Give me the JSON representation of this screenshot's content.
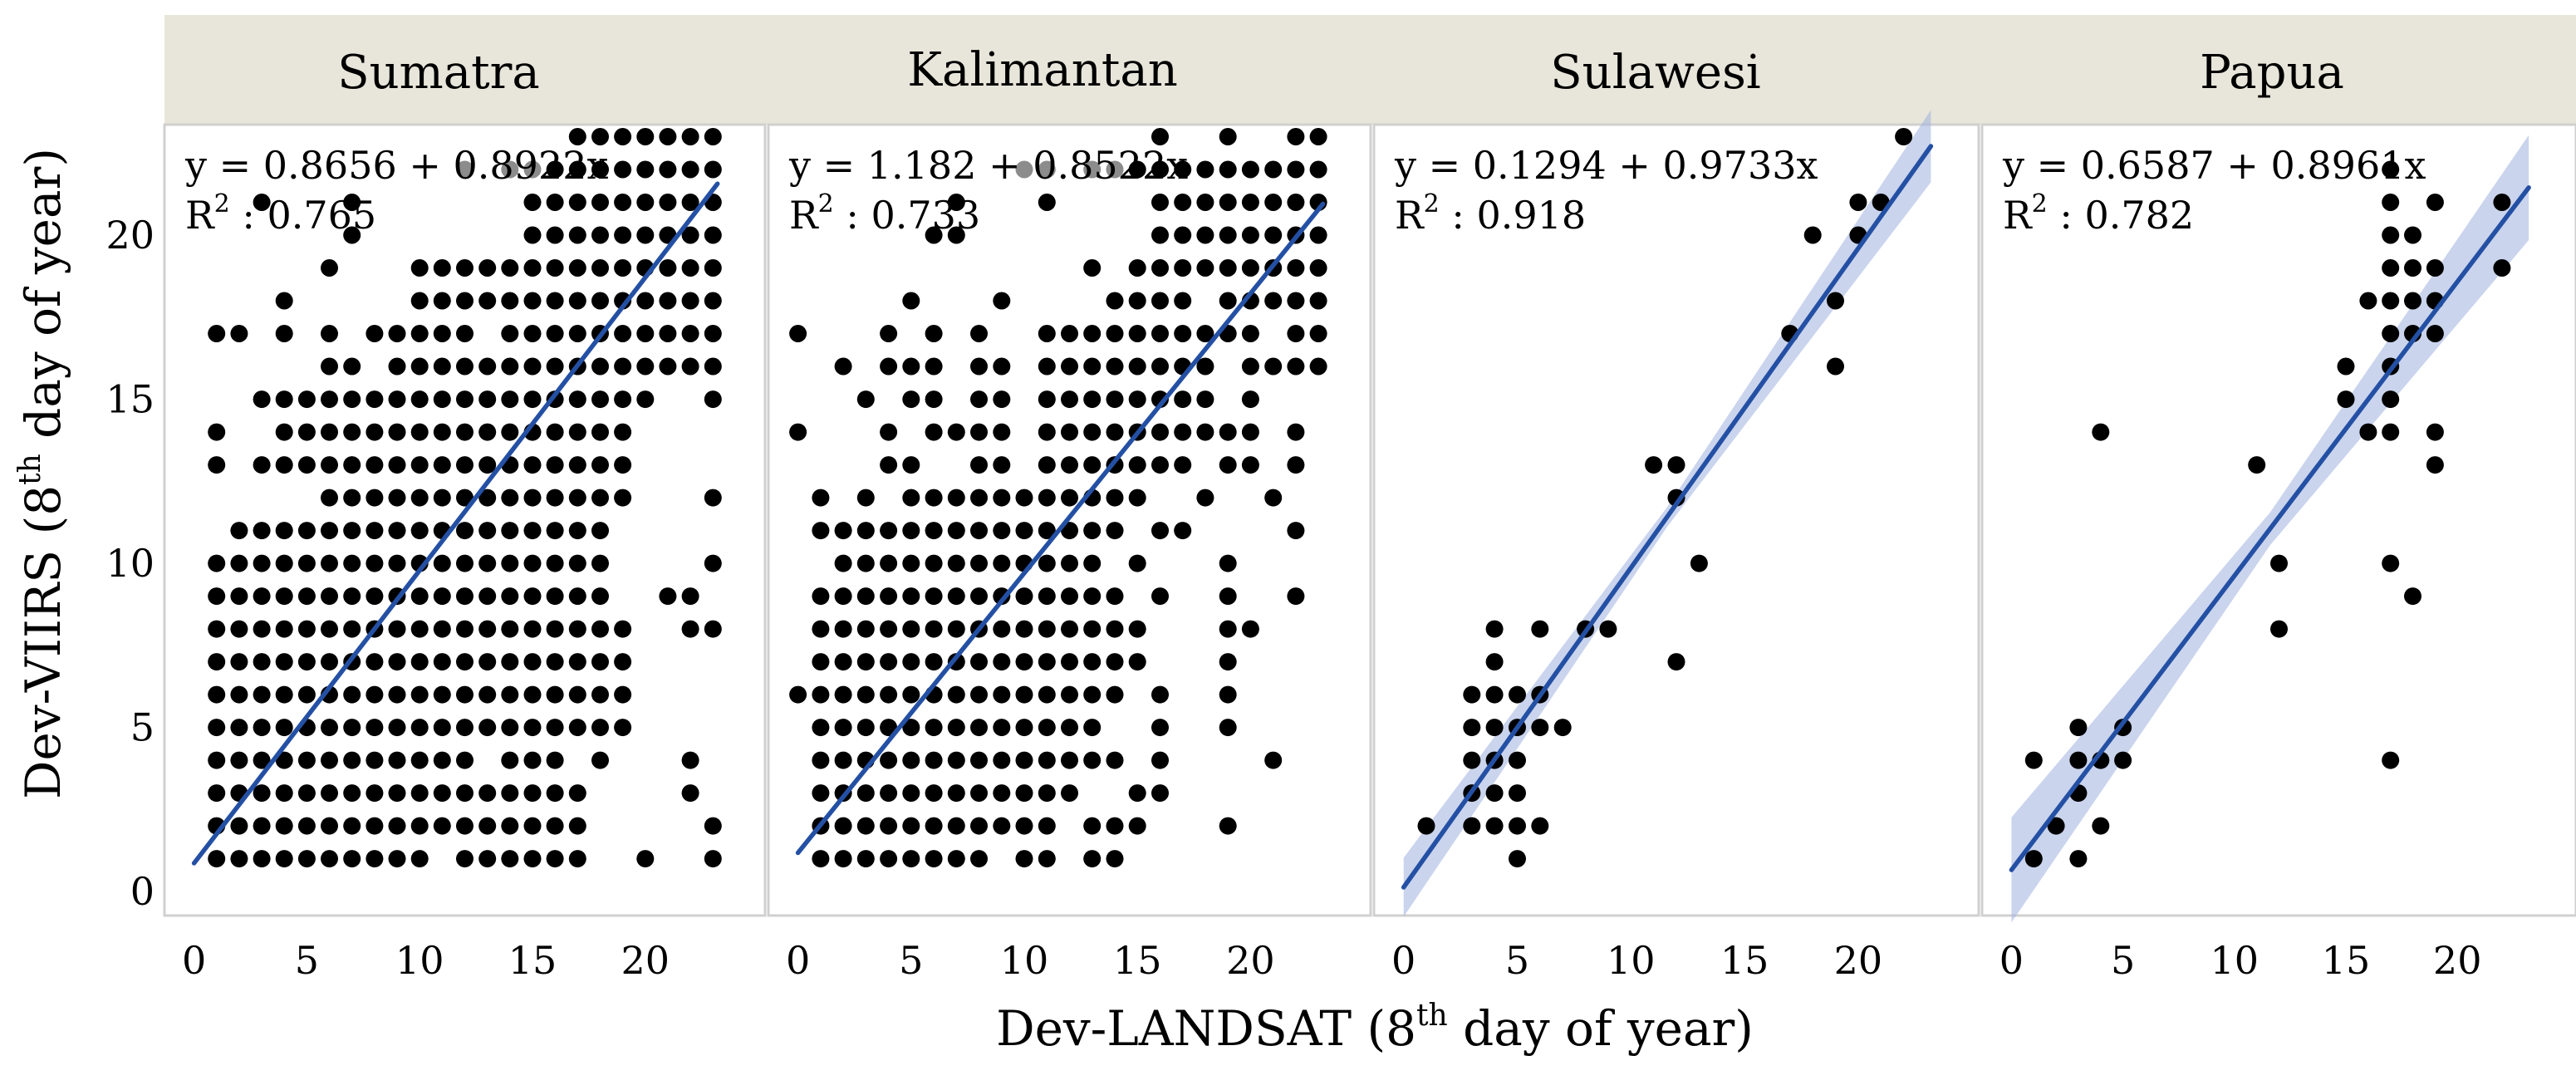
{
  "figure": {
    "ylabel_prefix": "Dev-VIIRS (8",
    "ylabel_sup": "th",
    "ylabel_suffix": " day of year)",
    "xlabel_prefix": "Dev-LANDSAT (8",
    "xlabel_sup": "th",
    "xlabel_suffix": " day of year)",
    "r2_prefix": "R",
    "r2_sup": "2"
  },
  "colors": {
    "strip": "#e8e6da",
    "panel_border": "#d0d0d0",
    "point": "#000000",
    "faded_point": "#8c8c8c",
    "line": "#2450a4",
    "ribbon": "#9eb1de"
  },
  "chart_data": [
    {
      "type": "scatter",
      "title": "Sumatra",
      "equation": "y = 0.8656 + 0.8922x",
      "r2_value": " : 0.765",
      "intercept": 0.8656,
      "slope": 0.8922,
      "ribbon": false,
      "xlim": [
        -0.5,
        24.5
      ],
      "ylim": [
        -0.3,
        24
      ],
      "xticks": [
        0,
        5,
        10,
        15,
        20
      ],
      "yticks": [
        0,
        5,
        10,
        15,
        20
      ],
      "rows": {
        "1": [
          [
            1,
            10
          ],
          [
            12,
            16
          ],
          [
            17
          ],
          [
            20
          ],
          [
            23
          ]
        ],
        "2": [
          [
            1,
            17
          ],
          [
            23
          ]
        ],
        "3": [
          [
            1,
            17
          ],
          [
            22
          ]
        ],
        "4": [
          [
            1,
            12
          ],
          [
            14,
            16
          ],
          [
            18
          ],
          [
            22
          ]
        ],
        "5": [
          [
            1,
            19
          ]
        ],
        "6": [
          [
            1,
            19
          ]
        ],
        "7": [
          [
            1,
            19
          ]
        ],
        "8": [
          [
            1,
            19
          ],
          [
            22
          ],
          [
            23
          ]
        ],
        "9": [
          [
            1,
            18
          ],
          [
            21
          ],
          [
            22
          ]
        ],
        "10": [
          [
            1,
            18
          ],
          [
            23
          ]
        ],
        "11": [
          [
            2,
            18
          ]
        ],
        "12": [
          [
            6,
            19
          ],
          [
            23
          ]
        ],
        "13": [
          [
            1
          ],
          [
            3,
            19
          ]
        ],
        "14": [
          [
            1
          ],
          [
            4,
            19
          ]
        ],
        "15": [
          [
            3,
            20
          ],
          [
            23
          ]
        ],
        "16": [
          [
            6
          ],
          [
            7
          ],
          [
            9,
            23
          ]
        ],
        "17": [
          [
            1
          ],
          [
            2
          ],
          [
            4
          ],
          [
            6
          ],
          [
            8,
            12
          ],
          [
            14,
            23
          ]
        ],
        "18": [
          [
            4
          ],
          [
            10,
            23
          ]
        ],
        "19": [
          [
            6
          ],
          [
            10,
            23
          ]
        ],
        "20": [
          [
            7
          ],
          [
            15,
            23
          ]
        ],
        "21": [
          [
            3
          ],
          [
            7
          ],
          [
            15,
            23
          ]
        ],
        "22": [
          [
            16,
            23
          ]
        ],
        "23": [
          [
            17,
            23
          ]
        ]
      },
      "faded_points": [
        [
          12,
          22
        ],
        [
          14,
          22
        ],
        [
          15,
          22
        ]
      ]
    },
    {
      "type": "scatter",
      "title": "Kalimantan",
      "equation": "y = 1.182 + 0.8522x",
      "r2_value": " : 0.733",
      "intercept": 1.182,
      "slope": 0.8522,
      "ribbon": false,
      "xlim": [
        -0.5,
        24.5
      ],
      "ylim": [
        -0.3,
        24
      ],
      "xticks": [
        0,
        5,
        10,
        15,
        20
      ],
      "yticks": [
        0,
        5,
        10,
        15,
        20
      ],
      "rows": {
        "1": [
          [
            1,
            8
          ],
          [
            10
          ],
          [
            11
          ],
          [
            13
          ],
          [
            14
          ]
        ],
        "2": [
          [
            1,
            11
          ],
          [
            13,
            15
          ],
          [
            19
          ]
        ],
        "3": [
          [
            1,
            12
          ],
          [
            15
          ],
          [
            16
          ]
        ],
        "4": [
          [
            1,
            14
          ],
          [
            16
          ],
          [
            21
          ]
        ],
        "5": [
          [
            1,
            13
          ],
          [
            16
          ],
          [
            19
          ]
        ],
        "6": [
          [
            0,
            14
          ],
          [
            16
          ],
          [
            19
          ]
        ],
        "7": [
          [
            1,
            15
          ],
          [
            19
          ]
        ],
        "8": [
          [
            1,
            15
          ],
          [
            19
          ],
          [
            20
          ]
        ],
        "9": [
          [
            1,
            14
          ],
          [
            16
          ],
          [
            19
          ],
          [
            22
          ]
        ],
        "10": [
          [
            2,
            13
          ],
          [
            15
          ],
          [
            19
          ]
        ],
        "11": [
          [
            1,
            14
          ],
          [
            16
          ],
          [
            17
          ],
          [
            22
          ]
        ],
        "12": [
          [
            1
          ],
          [
            3
          ],
          [
            5,
            15
          ],
          [
            18
          ],
          [
            21
          ]
        ],
        "13": [
          [
            4
          ],
          [
            5
          ],
          [
            8
          ],
          [
            9
          ],
          [
            11,
            17
          ],
          [
            19
          ],
          [
            20
          ],
          [
            22
          ]
        ],
        "14": [
          [
            0
          ],
          [
            4
          ],
          [
            6,
            9
          ],
          [
            11,
            20
          ],
          [
            22
          ]
        ],
        "15": [
          [
            3
          ],
          [
            5
          ],
          [
            6
          ],
          [
            8
          ],
          [
            9
          ],
          [
            11,
            18
          ],
          [
            20
          ]
        ],
        "16": [
          [
            2
          ],
          [
            4,
            6
          ],
          [
            8
          ],
          [
            9
          ],
          [
            11,
            18
          ],
          [
            20,
            23
          ]
        ],
        "17": [
          [
            0
          ],
          [
            4
          ],
          [
            6
          ],
          [
            8
          ],
          [
            11,
            20
          ],
          [
            22
          ],
          [
            23
          ]
        ],
        "18": [
          [
            5
          ],
          [
            9
          ],
          [
            14,
            17
          ],
          [
            19,
            23
          ]
        ],
        "19": [
          [
            13
          ],
          [
            15,
            23
          ]
        ],
        "20": [
          [
            6
          ],
          [
            7
          ],
          [
            16,
            23
          ]
        ],
        "21": [
          [
            7
          ],
          [
            11
          ],
          [
            16,
            23
          ]
        ],
        "22": [
          [
            15,
            23
          ]
        ],
        "23": [
          [
            16
          ],
          [
            19
          ],
          [
            22
          ],
          [
            23
          ]
        ]
      },
      "faded_points": [
        [
          10,
          22
        ],
        [
          11,
          22
        ],
        [
          13,
          22
        ],
        [
          14,
          22
        ]
      ]
    },
    {
      "type": "scatter",
      "title": "Sulawesi",
      "equation": "y = 0.1294 + 0.9733x",
      "r2_value": " : 0.918",
      "intercept": 0.1294,
      "slope": 0.9733,
      "ribbon": true,
      "ribbon_width": [
        0.9,
        0.3,
        1.1
      ],
      "xlim": [
        -0.5,
        24.5
      ],
      "ylim": [
        -0.3,
        24
      ],
      "xticks": [
        0,
        5,
        10,
        15,
        20
      ],
      "yticks": [
        0,
        5,
        10,
        15,
        20
      ],
      "rows": {},
      "points": [
        [
          1,
          2
        ],
        [
          3,
          2
        ],
        [
          3,
          3
        ],
        [
          3,
          4
        ],
        [
          3,
          5
        ],
        [
          3,
          6
        ],
        [
          4,
          2
        ],
        [
          4,
          3
        ],
        [
          4,
          4
        ],
        [
          4,
          5
        ],
        [
          4,
          6
        ],
        [
          4,
          7
        ],
        [
          4,
          8
        ],
        [
          5,
          1
        ],
        [
          5,
          2
        ],
        [
          5,
          3
        ],
        [
          5,
          4
        ],
        [
          5,
          5
        ],
        [
          5,
          6
        ],
        [
          6,
          2
        ],
        [
          6,
          5
        ],
        [
          6,
          6
        ],
        [
          6,
          8
        ],
        [
          7,
          5
        ],
        [
          8,
          8
        ],
        [
          9,
          8
        ],
        [
          11,
          13
        ],
        [
          12,
          7
        ],
        [
          12,
          12
        ],
        [
          12,
          13
        ],
        [
          13,
          10
        ],
        [
          17,
          17
        ],
        [
          18,
          20
        ],
        [
          19,
          16
        ],
        [
          19,
          18
        ],
        [
          20,
          20
        ],
        [
          20,
          21
        ],
        [
          21,
          21
        ],
        [
          22,
          23
        ]
      ],
      "faded_points": []
    },
    {
      "type": "scatter",
      "title": "Papua",
      "equation": "y = 0.6587 + 0.8961x",
      "r2_value": " : 0.782",
      "intercept": 0.6587,
      "slope": 0.8961,
      "ribbon": true,
      "ribbon_width": [
        1.6,
        0.5,
        1.6
      ],
      "xlim": [
        -0.5,
        24.5
      ],
      "ylim": [
        -0.3,
        24
      ],
      "xticks": [
        0,
        5,
        10,
        15,
        20
      ],
      "yticks": [
        0,
        5,
        10,
        15,
        20
      ],
      "rows": {},
      "points": [
        [
          1,
          1
        ],
        [
          1,
          4
        ],
        [
          2,
          2
        ],
        [
          3,
          1
        ],
        [
          3,
          3
        ],
        [
          3,
          4
        ],
        [
          3,
          5
        ],
        [
          4,
          2
        ],
        [
          4,
          4
        ],
        [
          4,
          14
        ],
        [
          5,
          4
        ],
        [
          5,
          5
        ],
        [
          11,
          13
        ],
        [
          12,
          8
        ],
        [
          12,
          10
        ],
        [
          15,
          15
        ],
        [
          15,
          16
        ],
        [
          16,
          14
        ],
        [
          16,
          18
        ],
        [
          17,
          4
        ],
        [
          17,
          10
        ],
        [
          17,
          14
        ],
        [
          17,
          15
        ],
        [
          17,
          16
        ],
        [
          17,
          17
        ],
        [
          17,
          18
        ],
        [
          17,
          19
        ],
        [
          17,
          20
        ],
        [
          17,
          21
        ],
        [
          17,
          22
        ],
        [
          18,
          9
        ],
        [
          18,
          17
        ],
        [
          18,
          18
        ],
        [
          18,
          19
        ],
        [
          18,
          20
        ],
        [
          19,
          13
        ],
        [
          19,
          14
        ],
        [
          19,
          17
        ],
        [
          19,
          18
        ],
        [
          19,
          19
        ],
        [
          19,
          21
        ],
        [
          22,
          19
        ],
        [
          22,
          21
        ]
      ],
      "faded_points": []
    }
  ]
}
